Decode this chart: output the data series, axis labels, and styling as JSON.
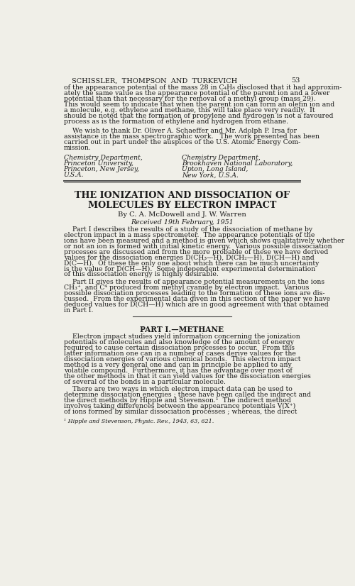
{
  "bg_color": "#f0efe8",
  "text_color": "#1a1a1a",
  "page_width": 5.0,
  "page_height": 8.26,
  "dpi": 100,
  "header_author": "SCHISSLER,  THOMPSON  AND  TURKEVICH",
  "header_page": "53",
  "para1_lines": [
    "of the appearance potential of the mass 28 in C₄H₈ disclosed that it had approxim-",
    "ately the same value as the appearance potential of the parent ion and a lower",
    "potential than that necessary for the removal of a methyl group (mass 29).",
    "This would seem to indicate that when the parent ion can form an olefin ion and",
    "a molecule, e.g. ethylene and methane, this will take place very readily.  It",
    "should be noted that the formation of propylene and hydrogen is not a favoured",
    "process as is the formation of ethylene and hydrogen from ethane."
  ],
  "para2_lines": [
    "    We wish to thank Dr. Oliver A. Schaeffer and Mr. Adolph P. Irsa for",
    "assistance in the mass spectrographic work.   The work presented has been",
    "carried out in part under the auspices of the U.S. Atomic Energy Com-",
    "mission."
  ],
  "affil_left": [
    "Chemistry Department,",
    "Princeton University,",
    "Princeton, New Jersey,",
    "U.S.A."
  ],
  "affil_right": [
    "Chemistry Department,",
    "Brookhaven National Laboratory,",
    "Upton, Long Island,",
    "New York, U.S.A."
  ],
  "main_title_1": "THE IONIZATION AND DISSOCIATION OF",
  "main_title_2": "MOLECULES BY ELECTRON IMPACT",
  "byline": "By C. A. McDowell and J. W. Warren",
  "received": "Received 19th February, 1951",
  "abstract1_lines": [
    "    Part I describes the results of a study of the dissociation of methane by",
    "electron impact in a mass spectrometer.  The appearance potentials of the",
    "ions have been measured and a method is given which shows qualitatively whether",
    "or not an ion is formed with initial kinetic energy.  Various possible dissociation",
    "processes are discussed and from the more probable of these we have derived",
    "values for the dissociation energies D(CH₃—H), D(CH₂—H), D(CH—H) and",
    "D(C—H).  Of these the only one about which there can be much uncertainty",
    "is the value for D(CH—H).  Some independent experimental determination",
    "of this dissociation energy is highly desirable."
  ],
  "abstract2_lines": [
    "    Part II gives the results of appearance potential measurements on the ions",
    "CH₃⁺, and C⁴ produced from methyl cyanide by electron impact.  Various",
    "possible dissociation processes leading to the formation of these ions are dis-",
    "cussed.  From the experimental data given in this section of the paper we have",
    "deduced values for D(CH—H) which are in good agreement with that obtained",
    "in Part I."
  ],
  "section_title": "PART I.—METHANE",
  "section_para1_lines": [
    "    Electron impact studies yield information concerning the ionization",
    "potentials of molecules and also knowledge of the amount of energy",
    "required to cause certain dissociation processes to occur.  From this",
    "latter information one can in a number of cases derive values for the",
    "dissociation energies of various chemical bonds.  This electron impact",
    "method is a very general one and can in principle be applied to any",
    "volatile compound.  Furthermore, it has the advantage over most of",
    "the other methods in that it can yield values for the dissociation energies",
    "of several of the bonds in a particular molecule."
  ],
  "section_para2_lines": [
    "    There are two ways in which electron impact data can be used to",
    "determine dissociation energies ; these have been called the indirect and",
    "the direct methods by Hipple and Stevenson.¹  The indirect method",
    "involves taking differences between the appearance potentials V(X⁺)",
    "of ions formed by similar dissociation processes ; whereas, the direct"
  ],
  "footnote": "¹ Hipple and Stevenson, Physic. Rev., 1943, 63, 621."
}
